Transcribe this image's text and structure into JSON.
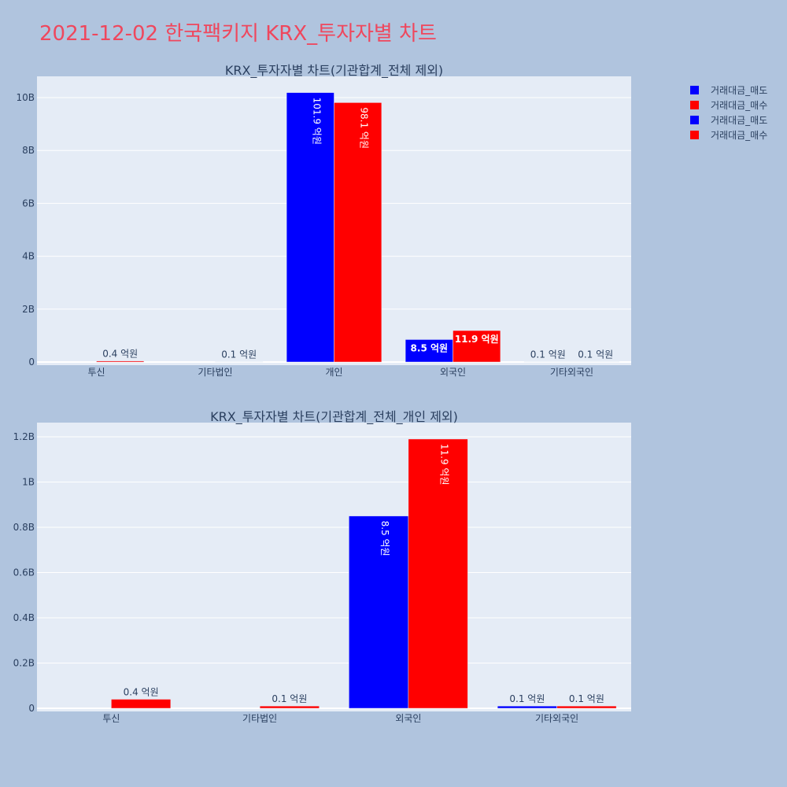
{
  "title": "2021-12-02 한국팩키지 KRX_투자자별 차트",
  "legend": [
    {
      "name": "거래대금_매도",
      "color": "#0000ff"
    },
    {
      "name": "거래대금_매수",
      "color": "#ff0000"
    },
    {
      "name": "거래대금_매도",
      "color": "#0000ff"
    },
    {
      "name": "거래대금_매수",
      "color": "#ff0000"
    }
  ],
  "chart_data": [
    {
      "type": "bar",
      "title": "KRX_투자자별 차트(기관합계_전체 제외)",
      "categories": [
        "투신",
        "기타법인",
        "개인",
        "외국인",
        "기타외국인"
      ],
      "series": [
        {
          "name": "거래대금_매도",
          "color": "#0000ff",
          "values": [
            0,
            0,
            10.19,
            0.85,
            0.01
          ],
          "labels": [
            "",
            "",
            "101.9 억원",
            "8.5 억원",
            "0.1 억원"
          ]
        },
        {
          "name": "거래대금_매수",
          "color": "#ff0000",
          "values": [
            0.04,
            0.01,
            9.81,
            1.19,
            0.01
          ],
          "labels": [
            "0.4 억원",
            "0.1 억원",
            "98.1 억원",
            "11.9 억원",
            "0.1 억원"
          ]
        }
      ],
      "yticks": [
        "0",
        "2B",
        "4B",
        "6B",
        "8B",
        "10B"
      ],
      "ytick_values": [
        0,
        2,
        4,
        6,
        8,
        10
      ],
      "ylim": [
        0,
        10.8
      ],
      "unit": "B"
    },
    {
      "type": "bar",
      "title": "KRX_투자자별 차트(기관합계_전체_개인 제외)",
      "categories": [
        "투신",
        "기타법인",
        "외국인",
        "기타외국인"
      ],
      "series": [
        {
          "name": "거래대금_매도",
          "color": "#0000ff",
          "values": [
            0,
            0,
            0.85,
            0.01
          ],
          "labels": [
            "",
            "",
            "8.5 억원",
            "0.1 억원"
          ]
        },
        {
          "name": "거래대금_매수",
          "color": "#ff0000",
          "values": [
            0.04,
            0.01,
            1.19,
            0.01
          ],
          "labels": [
            "0.4 억원",
            "0.1 억원",
            "11.9 억원",
            "0.1 억원"
          ]
        }
      ],
      "yticks": [
        "0",
        "0.2B",
        "0.4B",
        "0.6B",
        "0.8B",
        "1B",
        "1.2B"
      ],
      "ytick_values": [
        0,
        0.2,
        0.4,
        0.6,
        0.8,
        1,
        1.2
      ],
      "ylim": [
        0,
        1.26
      ],
      "unit": "B"
    }
  ]
}
